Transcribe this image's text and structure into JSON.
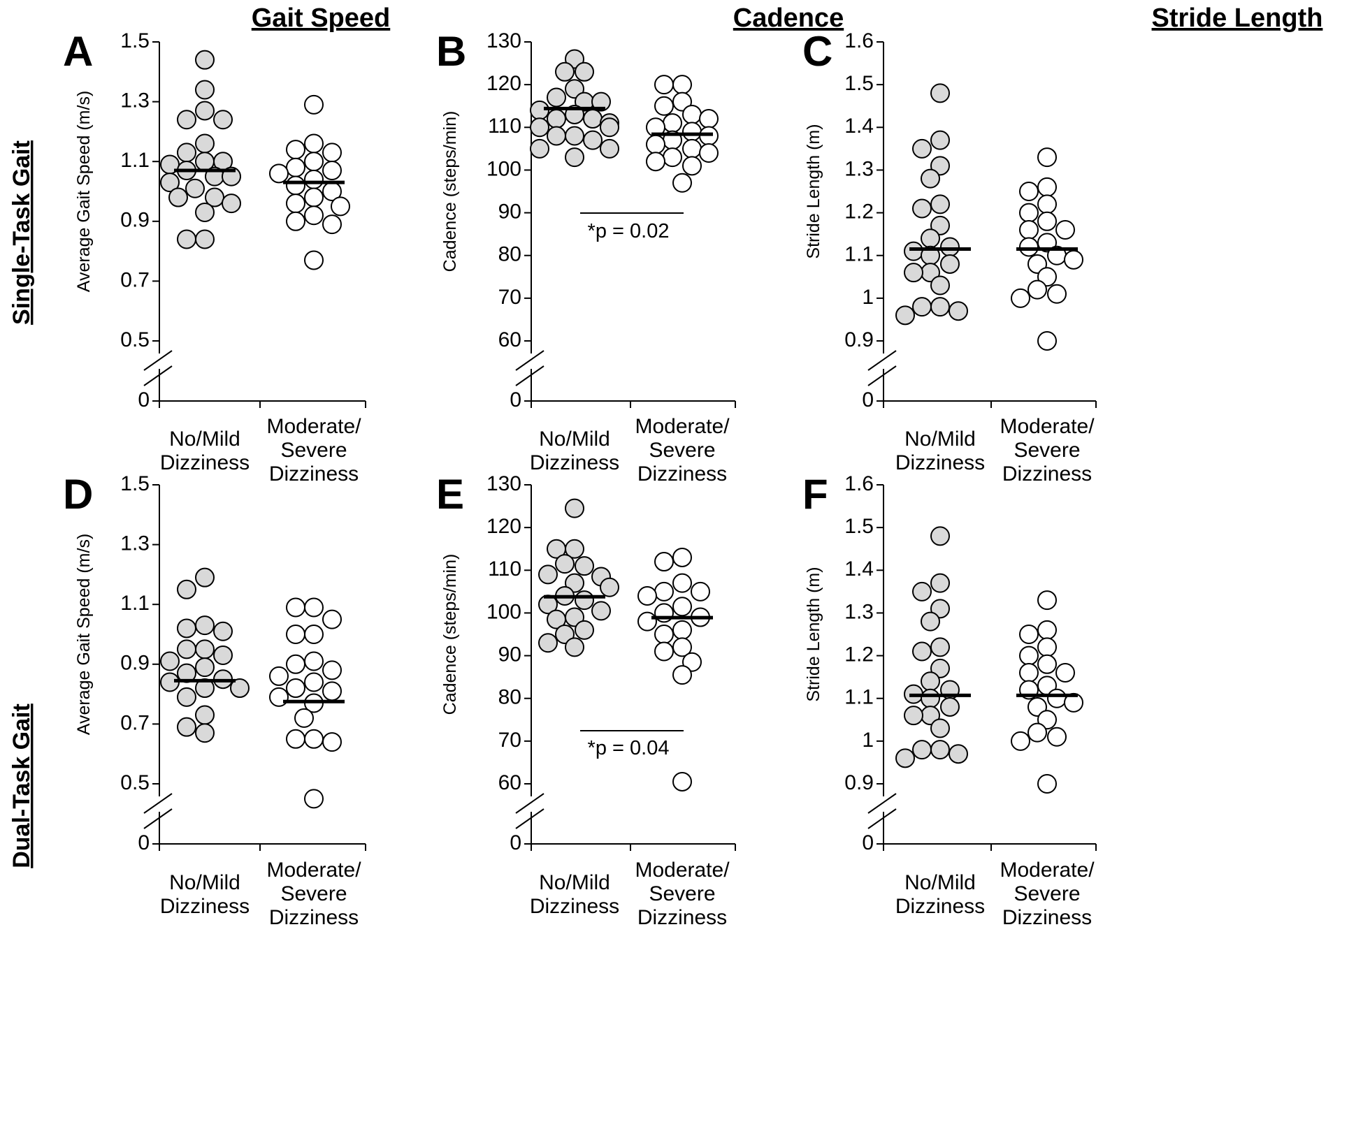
{
  "figure": {
    "col_titles": [
      "Gait Speed",
      "Cadence",
      "Stride Length"
    ],
    "row_titles": [
      "Single-Task Gait",
      "Dual-Task Gait"
    ]
  },
  "colors": {
    "no_mild_fill": "#d9d9d9",
    "moderate_severe_fill": "#ffffff",
    "stroke": "#000000"
  },
  "chart_data": [
    {
      "panel": "A",
      "type": "scatter",
      "title": "Gait Speed",
      "xlabel": "",
      "ylabel": "Average Gait Speed (m/s)",
      "ylim": [
        0.5,
        1.5
      ],
      "axis_break": true,
      "yticks": [
        "1.5",
        "1.3",
        "1.1",
        "0.9",
        "0.7",
        "0.5"
      ],
      "zero_label": "0",
      "categories": [
        [
          "No/Mild",
          "Dizziness"
        ],
        [
          "Moderate/",
          "Severe",
          "Dizziness"
        ]
      ],
      "series": [
        {
          "name": "No/Mild Dizziness",
          "mean": 1.07,
          "values": [
            1.44,
            1.34,
            1.27,
            1.24,
            1.24,
            1.16,
            1.13,
            1.1,
            1.1,
            1.09,
            1.07,
            1.05,
            1.05,
            1.03,
            1.01,
            0.98,
            0.98,
            0.96,
            0.93,
            0.84,
            0.84
          ]
        },
        {
          "name": "Moderate/Severe Dizziness",
          "mean": 1.03,
          "values": [
            1.29,
            1.16,
            1.14,
            1.13,
            1.1,
            1.08,
            1.07,
            1.06,
            1.04,
            1.02,
            1.0,
            0.98,
            0.96,
            0.95,
            0.92,
            0.9,
            0.89,
            0.77
          ]
        }
      ]
    },
    {
      "panel": "B",
      "type": "scatter",
      "title": "Cadence",
      "xlabel": "",
      "ylabel": "Cadence (steps/min)",
      "ylim": [
        60,
        130
      ],
      "axis_break": true,
      "yticks": [
        "130",
        "120",
        "110",
        "100",
        "90",
        "80",
        "70",
        "60"
      ],
      "zero_label": "0",
      "categories": [
        [
          "No/Mild",
          "Dizziness"
        ],
        [
          "Moderate/",
          "Severe",
          "Dizziness"
        ]
      ],
      "annotation": "*p = 0.02",
      "series": [
        {
          "name": "No/Mild Dizziness",
          "mean": 114.4,
          "values": [
            126,
            123,
            123,
            119,
            117,
            116,
            116,
            114,
            113,
            112,
            112,
            111,
            110,
            110,
            108,
            108,
            107,
            105,
            105,
            103
          ]
        },
        {
          "name": "Moderate/Severe Dizziness",
          "mean": 108.4,
          "values": [
            120,
            120,
            116,
            115,
            113,
            112,
            111,
            110,
            109,
            108,
            107,
            106,
            105,
            104,
            103,
            102,
            101,
            97
          ]
        }
      ]
    },
    {
      "panel": "C",
      "type": "scatter",
      "title": "Stride Length",
      "xlabel": "",
      "ylabel": "Stride Length (m)",
      "ylim": [
        0.9,
        1.6
      ],
      "axis_break": true,
      "yticks": [
        "1.6",
        "1.5",
        "1.4",
        "1.3",
        "1.2",
        "1.1",
        "1",
        "0.9"
      ],
      "zero_label": "0",
      "categories": [
        [
          "No/Mild",
          "Dizziness"
        ],
        [
          "Moderate/",
          "Severe",
          "Dizziness"
        ]
      ],
      "series": [
        {
          "name": "No/Mild Dizziness",
          "mean": 1.115,
          "values": [
            1.48,
            1.37,
            1.35,
            1.31,
            1.28,
            1.22,
            1.21,
            1.17,
            1.14,
            1.12,
            1.11,
            1.1,
            1.08,
            1.06,
            1.06,
            1.03,
            0.98,
            0.98,
            0.97,
            0.96
          ]
        },
        {
          "name": "Moderate/Severe Dizziness",
          "mean": 1.115,
          "values": [
            1.33,
            1.26,
            1.25,
            1.22,
            1.2,
            1.18,
            1.16,
            1.16,
            1.13,
            1.12,
            1.1,
            1.09,
            1.08,
            1.05,
            1.02,
            1.01,
            1.0,
            0.9
          ]
        }
      ]
    },
    {
      "panel": "D",
      "type": "scatter",
      "title": "Gait Speed",
      "xlabel": "",
      "ylabel": "Average Gait Speed (m/s)",
      "ylim": [
        0.5,
        1.5
      ],
      "axis_break": true,
      "yticks": [
        "1.5",
        "1.3",
        "1.1",
        "0.9",
        "0.7",
        "0.5"
      ],
      "zero_label": "0",
      "categories": [
        [
          "No/Mild",
          "Dizziness"
        ],
        [
          "Moderate/",
          "Severe",
          "Dizziness"
        ]
      ],
      "series": [
        {
          "name": "No/Mild Dizziness",
          "mean": 0.845,
          "values": [
            1.19,
            1.15,
            1.03,
            1.02,
            1.01,
            0.95,
            0.95,
            0.93,
            0.91,
            0.89,
            0.87,
            0.85,
            0.84,
            0.82,
            0.82,
            0.79,
            0.73,
            0.69,
            0.67
          ]
        },
        {
          "name": "Moderate/Severe Dizziness",
          "mean": 0.775,
          "values": [
            1.09,
            1.09,
            1.05,
            1.0,
            1.0,
            0.91,
            0.9,
            0.88,
            0.86,
            0.84,
            0.82,
            0.81,
            0.79,
            0.77,
            0.72,
            0.65,
            0.65,
            0.64,
            0.45
          ]
        }
      ]
    },
    {
      "panel": "E",
      "type": "scatter",
      "title": "Cadence",
      "xlabel": "",
      "ylabel": "Cadence (steps/min)",
      "ylim": [
        60,
        130
      ],
      "axis_break": true,
      "yticks": [
        "130",
        "120",
        "110",
        "100",
        "90",
        "80",
        "70",
        "60"
      ],
      "zero_label": "0",
      "categories": [
        [
          "No/Mild",
          "Dizziness"
        ],
        [
          "Moderate/",
          "Severe",
          "Dizziness"
        ]
      ],
      "annotation": "*p = 0.04",
      "series": [
        {
          "name": "No/Mild Dizziness",
          "mean": 103.8,
          "values": [
            124.5,
            115,
            115,
            111.5,
            111,
            109,
            108.5,
            107,
            106,
            104,
            103,
            102,
            100.5,
            99,
            98.5,
            96,
            95,
            93,
            92
          ]
        },
        {
          "name": "Moderate/Severe Dizziness",
          "mean": 98.9,
          "values": [
            113,
            112,
            107,
            105,
            105,
            104,
            101.5,
            100,
            99,
            98,
            96,
            95,
            92,
            91,
            88.5,
            85.5,
            60.5
          ]
        }
      ]
    },
    {
      "panel": "F",
      "type": "scatter",
      "title": "Stride Length",
      "xlabel": "",
      "ylabel": "Stride Length (m)",
      "ylim": [
        0.9,
        1.6
      ],
      "axis_break": true,
      "yticks": [
        "1.6",
        "1.5",
        "1.4",
        "1.3",
        "1.2",
        "1.1",
        "1",
        "0.9"
      ],
      "zero_label": "0",
      "categories": [
        [
          "No/Mild",
          "Dizziness"
        ],
        [
          "Moderate/",
          "Severe",
          "Dizziness"
        ]
      ],
      "series": [
        {
          "name": "No/Mild Dizziness",
          "mean": 1.107,
          "values": [
            1.48,
            1.37,
            1.35,
            1.31,
            1.28,
            1.22,
            1.21,
            1.17,
            1.14,
            1.12,
            1.11,
            1.1,
            1.08,
            1.06,
            1.06,
            1.03,
            0.98,
            0.98,
            0.97,
            0.96
          ]
        },
        {
          "name": "Moderate/Severe Dizziness",
          "mean": 1.107,
          "values": [
            1.33,
            1.26,
            1.25,
            1.22,
            1.2,
            1.18,
            1.16,
            1.16,
            1.13,
            1.12,
            1.1,
            1.09,
            1.08,
            1.05,
            1.02,
            1.01,
            1.0,
            0.9
          ]
        }
      ]
    }
  ]
}
